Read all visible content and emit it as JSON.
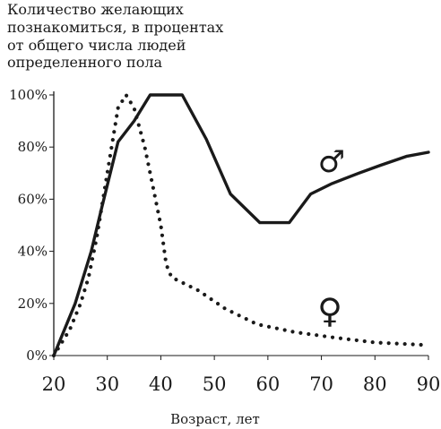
{
  "chart_data": {
    "type": "line",
    "title_lines": [
      "Количество желающих",
      "познакомиться, в процентах",
      "от общего числа людей",
      "определенного пола"
    ],
    "xlabel": "Возраст, лет",
    "ylabel": "",
    "xlim": [
      20,
      90
    ],
    "ylim": [
      0,
      100
    ],
    "x_ticks": [
      "20",
      "30",
      "40",
      "50",
      "60",
      "70",
      "80",
      "90"
    ],
    "y_ticks": [
      "0%",
      "20%",
      "40%",
      "60%",
      "80%",
      "100%"
    ],
    "grid": false,
    "series": [
      {
        "name": "♂",
        "style": "solid",
        "color": "#1a1a1a",
        "x": [
          20,
          24,
          27,
          29,
          32,
          35,
          38,
          44,
          48.5,
          53,
          58.5,
          64,
          68,
          72,
          77,
          81,
          86,
          90
        ],
        "y": [
          0,
          20,
          40,
          57,
          82,
          90,
          100,
          100,
          83,
          62,
          51,
          51,
          62,
          66,
          70,
          73,
          76.5,
          78
        ]
      },
      {
        "name": "♀",
        "style": "dotted",
        "color": "#1a1a1a",
        "x": [
          20,
          23,
          25,
          26.5,
          28,
          30,
          32,
          33.5,
          35,
          37,
          38.5,
          40,
          41,
          42,
          44,
          47,
          52,
          58,
          65,
          72,
          80,
          90
        ],
        "y": [
          0,
          10,
          20,
          30,
          45,
          70,
          95,
          100,
          95,
          80,
          65,
          50,
          35,
          30,
          28,
          25,
          18,
          12,
          9,
          7,
          5,
          4
        ]
      }
    ],
    "annotations": [
      {
        "label": "♂",
        "series": "male",
        "x": 72,
        "y": 75
      },
      {
        "label": "♀",
        "series": "female",
        "x": 72,
        "y": 18
      }
    ]
  }
}
